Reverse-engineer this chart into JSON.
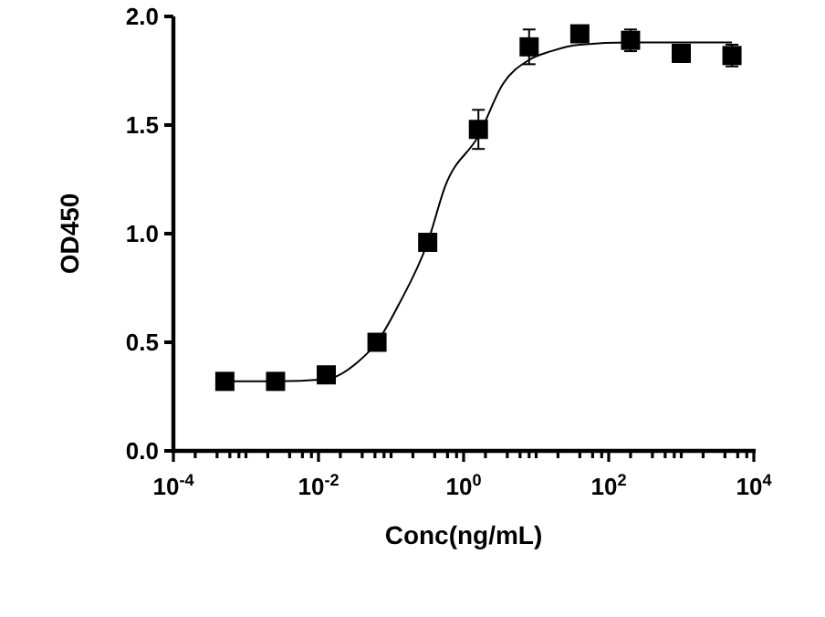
{
  "chart_data": {
    "type": "scatter",
    "xlabel": "Conc(ng/mL)",
    "ylabel": "OD450",
    "log": "x",
    "marker": "square",
    "grid": false,
    "xlim": [
      0.0001,
      10000
    ],
    "ylim": [
      0,
      2.0
    ],
    "xticks": [
      {
        "value": 0.0001,
        "label": "10$^{-4}$"
      },
      {
        "value": 0.01,
        "label": "10$^{-2}$"
      },
      {
        "value": 1,
        "label": "10$^{0}$"
      },
      {
        "value": 100,
        "label": "10$^{2}$"
      },
      {
        "value": 10000,
        "label": "10$^{4}$"
      },
      {
        "value": 0.001,
        "label": null
      },
      {
        "value": 0.1,
        "label": null
      },
      {
        "value": 10,
        "label": null
      },
      {
        "value": 1000,
        "label": null
      },
      {
        "value": 0.0002,
        "label": null
      },
      {
        "value": 0.0004,
        "label": null
      },
      {
        "value": 0.0006,
        "label": null
      },
      {
        "value": 0.0008,
        "label": null
      },
      {
        "value": 0.002,
        "label": null
      },
      {
        "value": 0.004,
        "label": null
      },
      {
        "value": 0.006,
        "label": null
      },
      {
        "value": 0.008,
        "label": null
      },
      {
        "value": 0.02,
        "label": null
      },
      {
        "value": 0.04,
        "label": null
      },
      {
        "value": 0.06,
        "label": null
      },
      {
        "value": 0.08,
        "label": null
      },
      {
        "value": 0.2,
        "label": null
      },
      {
        "value": 0.4,
        "label": null
      },
      {
        "value": 0.6,
        "label": null
      },
      {
        "value": 0.8,
        "label": null
      },
      {
        "value": 2,
        "label": null
      },
      {
        "value": 4,
        "label": null
      },
      {
        "value": 6,
        "label": null
      },
      {
        "value": 8,
        "label": null
      },
      {
        "value": 20,
        "label": null
      },
      {
        "value": 40,
        "label": null
      },
      {
        "value": 60,
        "label": null
      },
      {
        "value": 80,
        "label": null
      },
      {
        "value": 200,
        "label": null
      },
      {
        "value": 400,
        "label": null
      },
      {
        "value": 600,
        "label": null
      },
      {
        "value": 800,
        "label": null
      },
      {
        "value": 2000,
        "label": null
      },
      {
        "value": 4000,
        "label": null
      },
      {
        "value": 6000,
        "label": null
      },
      {
        "value": 8000,
        "label": null
      }
    ],
    "yticks": [
      {
        "value": 0,
        "label": "0.0"
      },
      {
        "value": 0.5,
        "label": "0.5"
      },
      {
        "value": 1,
        "label": "1.0"
      },
      {
        "value": 1.5,
        "label": "1.5"
      },
      {
        "value": 2,
        "label": "2.0"
      }
    ],
    "series": [
      {
        "type": "line",
        "color": "#000000",
        "marker": "none",
        "line_style": "solid",
        "x": [
          0.0005,
          0.0025,
          0.0128,
          0.035,
          0.064,
          0.126,
          0.32,
          0.56,
          1.6,
          3.5,
          8,
          16,
          40,
          200,
          1000,
          5000
        ],
        "values": [
          0.32,
          0.32,
          0.33,
          0.41,
          0.5,
          0.67,
          0.96,
          1.22,
          1.45,
          1.69,
          1.8,
          1.84,
          1.87,
          1.88,
          1.88,
          1.88
        ]
      },
      {
        "color": "#000000",
        "x": [
          0.000512,
          0.00256,
          0.0128,
          0.064,
          0.32,
          1.6,
          8,
          40,
          200,
          1000,
          5000
        ],
        "values": [
          0.32,
          0.32,
          0.35,
          0.5,
          0.96,
          1.48,
          1.86,
          1.92,
          1.89,
          1.83,
          1.82
        ],
        "errors": [
          null,
          null,
          null,
          null,
          null,
          0.09,
          0.08,
          0.02,
          0.05,
          0.04,
          0.05
        ]
      }
    ]
  }
}
